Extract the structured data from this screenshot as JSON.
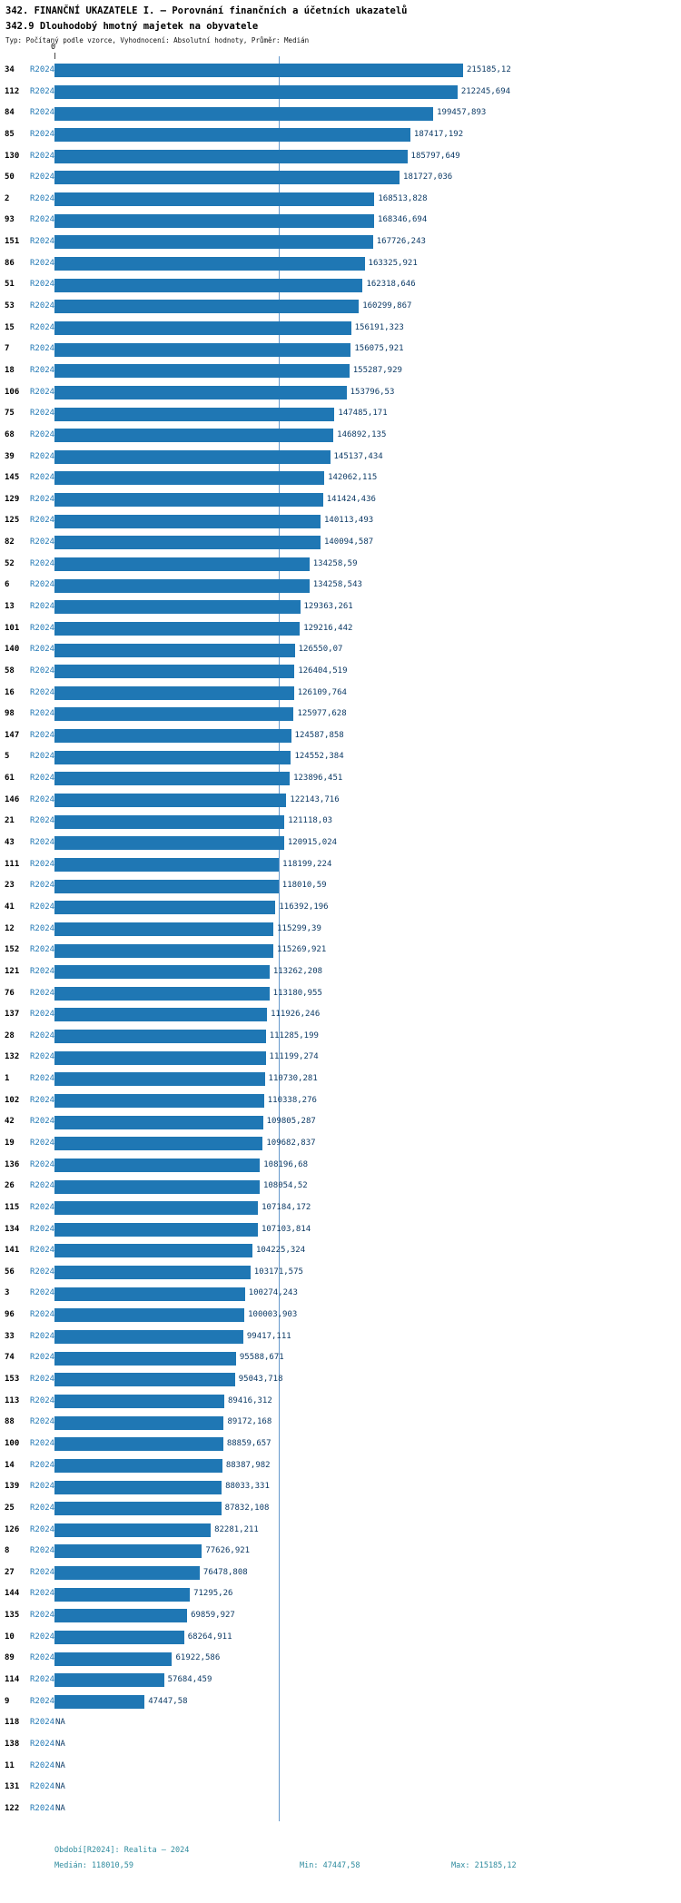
{
  "header": {
    "title": "342. FINANČNÍ UKAZATELE I. — Porovnání finančních a účetních ukazatelů",
    "subtitle": "342.9 Dlouhodobý hmotný majetek na obyvatele",
    "meta": "Typ: Počítaný podle vzorce, Vyhodnocení: Absolutní hodnoty, Průměr: Medián"
  },
  "chart_data": {
    "type": "bar",
    "orientation": "horizontal",
    "series_label": "R2024",
    "axis_zero_label": "0",
    "xlim": [
      0,
      215185.12
    ],
    "median": 118010.59,
    "min": 47447.58,
    "max": 215185.12,
    "bar_color": "#1f77b4",
    "median_line_color": "#6699cc",
    "series_label_color": "#1f77b4",
    "value_label_color": "#0d3b66",
    "categories": [
      "34",
      "112",
      "84",
      "85",
      "130",
      "50",
      "2",
      "93",
      "151",
      "86",
      "51",
      "53",
      "15",
      "7",
      "18",
      "106",
      "75",
      "68",
      "39",
      "145",
      "129",
      "125",
      "82",
      "52",
      "6",
      "13",
      "101",
      "140",
      "58",
      "16",
      "98",
      "147",
      "5",
      "61",
      "146",
      "21",
      "43",
      "111",
      "23",
      "41",
      "12",
      "152",
      "121",
      "76",
      "137",
      "28",
      "132",
      "1",
      "102",
      "42",
      "19",
      "136",
      "26",
      "115",
      "134",
      "141",
      "56",
      "3",
      "96",
      "33",
      "74",
      "153",
      "113",
      "88",
      "100",
      "14",
      "139",
      "25",
      "126",
      "8",
      "27",
      "144",
      "135",
      "10",
      "89",
      "114",
      "9",
      "118",
      "138",
      "11",
      "131",
      "122"
    ],
    "values": [
      215185.12,
      212245.694,
      199457.893,
      187417.192,
      185797.649,
      181727.036,
      168513.828,
      168346.694,
      167726.243,
      163325.921,
      162318.646,
      160299.867,
      156191.323,
      156075.921,
      155287.929,
      153796.53,
      147485.171,
      146892.135,
      145137.434,
      142062.115,
      141424.436,
      140113.493,
      140094.587,
      134258.59,
      134258.543,
      129363.261,
      129216.442,
      126550.07,
      126404.519,
      126109.764,
      125977.628,
      124587.858,
      124552.384,
      123896.451,
      122143.716,
      121118.03,
      120915.024,
      118199.224,
      118010.59,
      116392.196,
      115299.39,
      115269.921,
      113262.208,
      113180.955,
      111926.246,
      111285.199,
      111199.274,
      110730.281,
      110338.276,
      109805.287,
      109682.837,
      108196.68,
      108054.52,
      107184.172,
      107103.814,
      104225.324,
      103171.575,
      100274.243,
      100003.903,
      99417.111,
      95588.671,
      95043.718,
      89416.312,
      89172.168,
      88859.657,
      88387.982,
      88033.331,
      87832.108,
      82281.211,
      77626.921,
      76478.808,
      71295.26,
      69859.927,
      68264.911,
      61922.586,
      57684.459,
      47447.58,
      null,
      null,
      null,
      null,
      null
    ],
    "value_labels": [
      "215185,12",
      "212245,694",
      "199457,893",
      "187417,192",
      "185797,649",
      "181727,036",
      "168513,828",
      "168346,694",
      "167726,243",
      "163325,921",
      "162318,646",
      "160299,867",
      "156191,323",
      "156075,921",
      "155287,929",
      "153796,53",
      "147485,171",
      "146892,135",
      "145137,434",
      "142062,115",
      "141424,436",
      "140113,493",
      "140094,587",
      "134258,59",
      "134258,543",
      "129363,261",
      "129216,442",
      "126550,07",
      "126404,519",
      "126109,764",
      "125977,628",
      "124587,858",
      "124552,384",
      "123896,451",
      "122143,716",
      "121118,03",
      "120915,024",
      "118199,224",
      "118010,59",
      "116392,196",
      "115299,39",
      "115269,921",
      "113262,208",
      "113180,955",
      "111926,246",
      "111285,199",
      "111199,274",
      "110730,281",
      "110338,276",
      "109805,287",
      "109682,837",
      "108196,68",
      "108054,52",
      "107184,172",
      "107103,814",
      "104225,324",
      "103171,575",
      "100274,243",
      "100003,903",
      "99417,111",
      "95588,671",
      "95043,718",
      "89416,312",
      "89172,168",
      "88859,657",
      "88387,982",
      "88033,331",
      "87832,108",
      "82281,211",
      "77626,921",
      "76478,808",
      "71295,26",
      "69859,927",
      "68264,911",
      "61922,586",
      "57684,459",
      "47447,58",
      "NA",
      "NA",
      "NA",
      "NA",
      "NA"
    ]
  },
  "footer": {
    "period": "Období[R2024]: Realita — 2024",
    "median_label": "Medián: 118010,59",
    "min_label": "Min: 47447,58",
    "max_label": "Max: 215185,12",
    "text_color": "#2e8b9e"
  }
}
